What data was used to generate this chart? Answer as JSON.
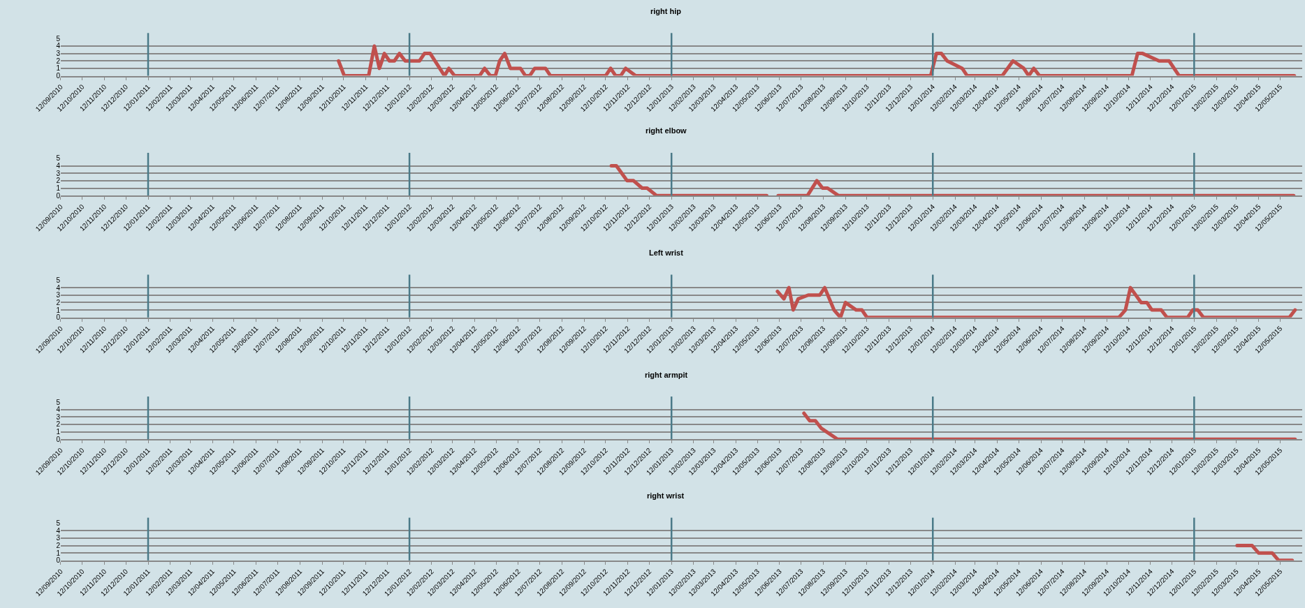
{
  "chart_data": [
    {
      "type": "line",
      "title": "right hip",
      "color": "#c0504d",
      "ylim": [
        0,
        5
      ],
      "yticks": [
        0,
        1,
        2,
        3,
        4,
        5
      ],
      "grid": "y",
      "xlim": [
        "2010-09-12",
        "2015-06-12"
      ],
      "xticks": [
        {
          "value": "2010-09-12",
          "label": "12/09/2010"
        },
        {
          "value": "2010-10-12",
          "label": "12/10/2010"
        },
        {
          "value": "2010-11-12",
          "label": "12/11/2010"
        },
        {
          "value": "2010-12-12",
          "label": "12/12/2010"
        },
        {
          "value": "2011-01-12",
          "label": "12/01/2011"
        },
        {
          "value": "2011-02-12",
          "label": "12/02/2011"
        },
        {
          "value": "2011-03-12",
          "label": "12/03/2011"
        },
        {
          "value": "2011-04-12",
          "label": "12/04/2011"
        },
        {
          "value": "2011-05-12",
          "label": "12/05/2011"
        },
        {
          "value": "2011-06-12",
          "label": "12/06/2011"
        },
        {
          "value": "2011-07-12",
          "label": "12/07/2011"
        },
        {
          "value": "2011-08-12",
          "label": "12/08/2011"
        },
        {
          "value": "2011-09-12",
          "label": "12/09/2011"
        },
        {
          "value": "2011-10-12",
          "label": "12/10/2011"
        },
        {
          "value": "2011-11-12",
          "label": "12/11/2011"
        },
        {
          "value": "2011-12-12",
          "label": "12/12/2011"
        },
        {
          "value": "2012-01-12",
          "label": "12/01/2012"
        },
        {
          "value": "2012-02-12",
          "label": "12/02/2012"
        },
        {
          "value": "2012-03-12",
          "label": "12/03/2012"
        },
        {
          "value": "2012-04-12",
          "label": "12/04/2012"
        },
        {
          "value": "2012-05-12",
          "label": "12/05/2012"
        },
        {
          "value": "2012-06-12",
          "label": "12/06/2012"
        },
        {
          "value": "2012-07-12",
          "label": "12/07/2012"
        },
        {
          "value": "2012-08-12",
          "label": "12/08/2012"
        },
        {
          "value": "2012-09-12",
          "label": "12/09/2012"
        },
        {
          "value": "2012-10-12",
          "label": "12/10/2012"
        },
        {
          "value": "2012-11-12",
          "label": "12/11/2012"
        },
        {
          "value": "2012-12-12",
          "label": "12/12/2012"
        },
        {
          "value": "2013-01-12",
          "label": "12/01/2013"
        },
        {
          "value": "2013-02-12",
          "label": "12/02/2013"
        },
        {
          "value": "2013-03-12",
          "label": "12/03/2013"
        },
        {
          "value": "2013-04-12",
          "label": "12/04/2013"
        },
        {
          "value": "2013-05-12",
          "label": "12/05/2013"
        },
        {
          "value": "2013-06-12",
          "label": "12/06/2013"
        },
        {
          "value": "2013-07-12",
          "label": "12/07/2013"
        },
        {
          "value": "2013-08-12",
          "label": "12/08/2013"
        },
        {
          "value": "2013-09-12",
          "label": "12/09/2013"
        },
        {
          "value": "2013-10-12",
          "label": "12/10/2013"
        },
        {
          "value": "2013-11-12",
          "label": "12/11/2013"
        },
        {
          "value": "2013-12-12",
          "label": "12/12/2013"
        },
        {
          "value": "2014-01-12",
          "label": "12/01/2014"
        },
        {
          "value": "2014-02-12",
          "label": "12/02/2014"
        },
        {
          "value": "2014-03-12",
          "label": "12/03/2014"
        },
        {
          "value": "2014-04-12",
          "label": "12/04/2014"
        },
        {
          "value": "2014-05-12",
          "label": "12/05/2014"
        },
        {
          "value": "2014-06-12",
          "label": "12/06/2014"
        },
        {
          "value": "2014-07-12",
          "label": "12/07/2014"
        },
        {
          "value": "2014-08-12",
          "label": "12/08/2014"
        },
        {
          "value": "2014-09-12",
          "label": "12/09/2014"
        },
        {
          "value": "2014-10-12",
          "label": "12/10/2014"
        },
        {
          "value": "2014-11-12",
          "label": "12/11/2014"
        },
        {
          "value": "2014-12-12",
          "label": "12/12/2014"
        },
        {
          "value": "2015-01-12",
          "label": "12/01/2015"
        },
        {
          "value": "2015-02-12",
          "label": "12/02/2015"
        },
        {
          "value": "2015-03-12",
          "label": "12/03/2015"
        },
        {
          "value": "2015-04-12",
          "label": "12/04/2015"
        },
        {
          "value": "2015-05-12",
          "label": "12/05/2015"
        }
      ],
      "x": [
        "2011-10-05",
        "2011-10-13",
        "2011-11-16",
        "2011-11-24",
        "2011-12-01",
        "2011-12-08",
        "2011-12-15",
        "2011-12-22",
        "2011-12-29",
        "2012-01-06",
        "2012-01-26",
        "2012-02-02",
        "2012-02-10",
        "2012-03-01",
        "2012-03-07",
        "2012-03-15",
        "2012-04-19",
        "2012-04-26",
        "2012-05-04",
        "2012-05-11",
        "2012-05-17",
        "2012-05-24",
        "2012-06-01",
        "2012-06-15",
        "2012-06-22",
        "2012-06-28",
        "2012-07-05",
        "2012-07-20",
        "2012-07-27",
        "2012-10-12",
        "2012-10-19",
        "2012-10-26",
        "2012-11-02",
        "2012-11-09",
        "2012-11-23",
        "2014-01-09",
        "2014-01-17",
        "2014-01-24",
        "2014-02-01",
        "2014-02-22",
        "2014-03-01",
        "2014-04-19",
        "2014-05-04",
        "2014-05-19",
        "2014-05-26",
        "2014-06-02",
        "2014-06-10",
        "2014-10-17",
        "2014-10-25",
        "2014-11-01",
        "2014-11-24",
        "2014-12-08",
        "2014-12-22",
        "2015-06-01"
      ],
      "values": [
        2,
        0,
        0,
        4,
        1,
        3,
        2,
        2,
        3,
        2,
        2,
        3,
        3,
        0,
        1,
        0,
        0,
        1,
        0,
        0,
        2,
        3,
        1,
        1,
        0,
        0,
        1,
        1,
        0,
        0,
        1,
        0,
        0,
        1,
        0,
        0,
        3,
        3,
        2,
        1,
        0,
        0,
        2,
        1,
        0,
        1,
        0,
        0,
        3,
        3,
        2,
        2,
        0,
        0
      ],
      "ref_lines": [
        {
          "axis": "x",
          "value": "2011-01-12",
          "color": "#4a7a88"
        },
        {
          "axis": "x",
          "value": "2012-01-12",
          "color": "#4a7a88"
        },
        {
          "axis": "x",
          "value": "2013-01-12",
          "color": "#4a7a88"
        },
        {
          "axis": "x",
          "value": "2014-01-12",
          "color": "#4a7a88"
        },
        {
          "axis": "x",
          "value": "2015-01-12",
          "color": "#4a7a88"
        }
      ]
    },
    {
      "type": "line",
      "title": "right elbow",
      "color": "#c0504d",
      "ylim": [
        0,
        5
      ],
      "yticks": [
        0,
        1,
        2,
        3,
        4,
        5
      ],
      "grid": "y",
      "xlim": [
        "2010-09-12",
        "2015-06-12"
      ],
      "xticks": [
        {
          "value": "2010-09-12",
          "label": "12/09/2010"
        },
        {
          "value": "2010-10-12",
          "label": "12/10/2010"
        },
        {
          "value": "2010-11-12",
          "label": "12/11/2010"
        },
        {
          "value": "2010-12-12",
          "label": "12/12/2010"
        },
        {
          "value": "2011-01-12",
          "label": "12/01/2011"
        },
        {
          "value": "2011-02-12",
          "label": "12/02/2011"
        },
        {
          "value": "2011-03-12",
          "label": "12/03/2011"
        },
        {
          "value": "2011-04-12",
          "label": "12/04/2011"
        },
        {
          "value": "2011-05-12",
          "label": "12/05/2011"
        },
        {
          "value": "2011-06-12",
          "label": "12/06/2011"
        },
        {
          "value": "2011-07-12",
          "label": "12/07/2011"
        },
        {
          "value": "2011-08-12",
          "label": "12/08/2011"
        },
        {
          "value": "2011-09-12",
          "label": "12/09/2011"
        },
        {
          "value": "2011-10-12",
          "label": "12/10/2011"
        },
        {
          "value": "2011-11-12",
          "label": "12/11/2011"
        },
        {
          "value": "2011-12-12",
          "label": "12/12/2011"
        },
        {
          "value": "2012-01-12",
          "label": "12/01/2012"
        },
        {
          "value": "2012-02-12",
          "label": "12/02/2012"
        },
        {
          "value": "2012-03-12",
          "label": "12/03/2012"
        },
        {
          "value": "2012-04-12",
          "label": "12/04/2012"
        },
        {
          "value": "2012-05-12",
          "label": "12/05/2012"
        },
        {
          "value": "2012-06-12",
          "label": "12/06/2012"
        },
        {
          "value": "2012-07-12",
          "label": "12/07/2012"
        },
        {
          "value": "2012-08-12",
          "label": "12/08/2012"
        },
        {
          "value": "2012-09-12",
          "label": "12/09/2012"
        },
        {
          "value": "2012-10-12",
          "label": "12/10/2012"
        },
        {
          "value": "2012-11-12",
          "label": "12/11/2012"
        },
        {
          "value": "2012-12-12",
          "label": "12/12/2012"
        },
        {
          "value": "2013-01-12",
          "label": "12/01/2013"
        },
        {
          "value": "2013-02-12",
          "label": "12/02/2013"
        },
        {
          "value": "2013-03-12",
          "label": "12/03/2013"
        },
        {
          "value": "2013-04-12",
          "label": "12/04/2013"
        },
        {
          "value": "2013-05-12",
          "label": "12/05/2013"
        },
        {
          "value": "2013-06-12",
          "label": "12/06/2013"
        },
        {
          "value": "2013-07-12",
          "label": "12/07/2013"
        },
        {
          "value": "2013-08-12",
          "label": "12/08/2013"
        },
        {
          "value": "2013-09-12",
          "label": "12/09/2013"
        },
        {
          "value": "2013-10-12",
          "label": "12/10/2013"
        },
        {
          "value": "2013-11-12",
          "label": "12/11/2013"
        },
        {
          "value": "2013-12-12",
          "label": "12/12/2013"
        },
        {
          "value": "2014-01-12",
          "label": "12/01/2014"
        },
        {
          "value": "2014-02-12",
          "label": "12/02/2014"
        },
        {
          "value": "2014-03-12",
          "label": "12/03/2014"
        },
        {
          "value": "2014-04-12",
          "label": "12/04/2014"
        },
        {
          "value": "2014-05-12",
          "label": "12/05/2014"
        },
        {
          "value": "2014-06-12",
          "label": "12/06/2014"
        },
        {
          "value": "2014-07-12",
          "label": "12/07/2014"
        },
        {
          "value": "2014-08-12",
          "label": "12/08/2014"
        },
        {
          "value": "2014-09-12",
          "label": "12/09/2014"
        },
        {
          "value": "2014-10-12",
          "label": "12/10/2014"
        },
        {
          "value": "2014-11-12",
          "label": "12/11/2014"
        },
        {
          "value": "2014-12-12",
          "label": "12/12/2014"
        },
        {
          "value": "2015-01-12",
          "label": "12/01/2015"
        },
        {
          "value": "2015-02-12",
          "label": "12/02/2015"
        },
        {
          "value": "2015-03-12",
          "label": "12/03/2015"
        },
        {
          "value": "2015-04-12",
          "label": "12/04/2015"
        },
        {
          "value": "2015-05-12",
          "label": "12/05/2015"
        }
      ],
      "x": [
        "2012-10-20",
        "2012-10-27",
        "2012-11-11",
        "2012-11-20",
        "2012-12-02",
        "2012-12-09",
        "2012-12-22",
        "2013-05-25",
        "2013-06-01",
        "2013-06-10",
        "2013-07-21",
        "2013-08-03",
        "2013-08-11",
        "2013-08-18",
        "2013-09-02",
        "2015-05-31"
      ],
      "values": [
        4,
        4,
        2,
        2,
        1,
        1,
        0,
        0,
        null,
        0,
        0,
        2,
        1,
        1,
        0,
        0
      ],
      "ref_lines": [
        {
          "axis": "x",
          "value": "2011-01-12",
          "color": "#4a7a88"
        },
        {
          "axis": "x",
          "value": "2012-01-12",
          "color": "#4a7a88"
        },
        {
          "axis": "x",
          "value": "2013-01-12",
          "color": "#4a7a88"
        },
        {
          "axis": "x",
          "value": "2014-01-12",
          "color": "#4a7a88"
        },
        {
          "axis": "x",
          "value": "2015-01-12",
          "color": "#4a7a88"
        }
      ]
    },
    {
      "type": "line",
      "title": "Left wrist",
      "color": "#c0504d",
      "ylim": [
        0,
        5
      ],
      "yticks": [
        0,
        1,
        2,
        3,
        4,
        5
      ],
      "grid": "y",
      "xlim": [
        "2010-09-12",
        "2015-06-12"
      ],
      "xticks": [
        {
          "value": "2010-09-12",
          "label": "12/09/2010"
        },
        {
          "value": "2010-10-12",
          "label": "12/10/2010"
        },
        {
          "value": "2010-11-12",
          "label": "12/11/2010"
        },
        {
          "value": "2010-12-12",
          "label": "12/12/2010"
        },
        {
          "value": "2011-01-12",
          "label": "12/01/2011"
        },
        {
          "value": "2011-02-12",
          "label": "12/02/2011"
        },
        {
          "value": "2011-03-12",
          "label": "12/03/2011"
        },
        {
          "value": "2011-04-12",
          "label": "12/04/2011"
        },
        {
          "value": "2011-05-12",
          "label": "12/05/2011"
        },
        {
          "value": "2011-06-12",
          "label": "12/06/2011"
        },
        {
          "value": "2011-07-12",
          "label": "12/07/2011"
        },
        {
          "value": "2011-08-12",
          "label": "12/08/2011"
        },
        {
          "value": "2011-09-12",
          "label": "12/09/2011"
        },
        {
          "value": "2011-10-12",
          "label": "12/10/2011"
        },
        {
          "value": "2011-11-12",
          "label": "12/11/2011"
        },
        {
          "value": "2011-12-12",
          "label": "12/12/2011"
        },
        {
          "value": "2012-01-12",
          "label": "12/01/2012"
        },
        {
          "value": "2012-02-12",
          "label": "12/02/2012"
        },
        {
          "value": "2012-03-12",
          "label": "12/03/2012"
        },
        {
          "value": "2012-04-12",
          "label": "12/04/2012"
        },
        {
          "value": "2012-05-12",
          "label": "12/05/2012"
        },
        {
          "value": "2012-06-12",
          "label": "12/06/2012"
        },
        {
          "value": "2012-07-12",
          "label": "12/07/2012"
        },
        {
          "value": "2012-08-12",
          "label": "12/08/2012"
        },
        {
          "value": "2012-09-12",
          "label": "12/09/2012"
        },
        {
          "value": "2012-10-12",
          "label": "12/10/2012"
        },
        {
          "value": "2012-11-12",
          "label": "12/11/2012"
        },
        {
          "value": "2012-12-12",
          "label": "12/12/2012"
        },
        {
          "value": "2013-01-12",
          "label": "12/01/2013"
        },
        {
          "value": "2013-02-12",
          "label": "12/02/2013"
        },
        {
          "value": "2013-03-12",
          "label": "12/03/2013"
        },
        {
          "value": "2013-04-12",
          "label": "12/04/2013"
        },
        {
          "value": "2013-05-12",
          "label": "12/05/2013"
        },
        {
          "value": "2013-06-12",
          "label": "12/06/2013"
        },
        {
          "value": "2013-07-12",
          "label": "12/07/2013"
        },
        {
          "value": "2013-08-12",
          "label": "12/08/2013"
        },
        {
          "value": "2013-09-12",
          "label": "12/09/2013"
        },
        {
          "value": "2013-10-12",
          "label": "12/10/2013"
        },
        {
          "value": "2013-11-12",
          "label": "12/11/2013"
        },
        {
          "value": "2013-12-12",
          "label": "12/12/2013"
        },
        {
          "value": "2014-01-12",
          "label": "12/01/2014"
        },
        {
          "value": "2014-02-12",
          "label": "12/02/2014"
        },
        {
          "value": "2014-03-12",
          "label": "12/03/2014"
        },
        {
          "value": "2014-04-12",
          "label": "12/04/2014"
        },
        {
          "value": "2014-05-12",
          "label": "12/05/2014"
        },
        {
          "value": "2014-06-12",
          "label": "12/06/2014"
        },
        {
          "value": "2014-07-12",
          "label": "12/07/2014"
        },
        {
          "value": "2014-08-12",
          "label": "12/08/2014"
        },
        {
          "value": "2014-09-12",
          "label": "12/09/2014"
        },
        {
          "value": "2014-10-12",
          "label": "12/10/2014"
        },
        {
          "value": "2014-11-12",
          "label": "12/11/2014"
        },
        {
          "value": "2014-12-12",
          "label": "12/12/2014"
        },
        {
          "value": "2015-01-12",
          "label": "12/01/2015"
        },
        {
          "value": "2015-02-12",
          "label": "12/02/2015"
        },
        {
          "value": "2015-03-12",
          "label": "12/03/2015"
        },
        {
          "value": "2015-04-12",
          "label": "12/04/2015"
        },
        {
          "value": "2015-05-12",
          "label": "12/05/2015"
        }
      ],
      "x": [
        "2013-06-09",
        "2013-06-18",
        "2013-06-25",
        "2013-07-01",
        "2013-07-08",
        "2013-07-22",
        "2013-08-07",
        "2013-08-14",
        "2013-08-27",
        "2013-09-05",
        "2013-09-12",
        "2013-09-27",
        "2013-10-05",
        "2013-10-12",
        "2014-09-29",
        "2014-10-08",
        "2014-10-15",
        "2014-10-30",
        "2014-11-07",
        "2014-11-14",
        "2014-11-27",
        "2014-12-05",
        "2015-01-03",
        "2015-01-10",
        "2015-01-17",
        "2015-01-25",
        "2015-05-25",
        "2015-06-02"
      ],
      "values": [
        3.5,
        2.5,
        4,
        1,
        2.5,
        3,
        3,
        4,
        1,
        0,
        2,
        1,
        1,
        0,
        0,
        1,
        4,
        2,
        2,
        1,
        1,
        0,
        0,
        1,
        1,
        0,
        0,
        1
      ],
      "ref_lines": [
        {
          "axis": "x",
          "value": "2011-01-12",
          "color": "#4a7a88"
        },
        {
          "axis": "x",
          "value": "2012-01-12",
          "color": "#4a7a88"
        },
        {
          "axis": "x",
          "value": "2013-01-12",
          "color": "#4a7a88"
        },
        {
          "axis": "x",
          "value": "2014-01-12",
          "color": "#4a7a88"
        },
        {
          "axis": "x",
          "value": "2015-01-12",
          "color": "#4a7a88"
        }
      ]
    },
    {
      "type": "line",
      "title": "right armpit",
      "color": "#c0504d",
      "ylim": [
        0,
        5
      ],
      "yticks": [
        0,
        1,
        2,
        3,
        4,
        5
      ],
      "grid": "y",
      "xlim": [
        "2010-09-12",
        "2015-06-12"
      ],
      "xticks": [
        {
          "value": "2010-09-12",
          "label": "12/09/2010"
        },
        {
          "value": "2010-10-12",
          "label": "12/10/2010"
        },
        {
          "value": "2010-11-12",
          "label": "12/11/2010"
        },
        {
          "value": "2010-12-12",
          "label": "12/12/2010"
        },
        {
          "value": "2011-01-12",
          "label": "12/01/2011"
        },
        {
          "value": "2011-02-12",
          "label": "12/02/2011"
        },
        {
          "value": "2011-03-12",
          "label": "12/03/2011"
        },
        {
          "value": "2011-04-12",
          "label": "12/04/2011"
        },
        {
          "value": "2011-05-12",
          "label": "12/05/2011"
        },
        {
          "value": "2011-06-12",
          "label": "12/06/2011"
        },
        {
          "value": "2011-07-12",
          "label": "12/07/2011"
        },
        {
          "value": "2011-08-12",
          "label": "12/08/2011"
        },
        {
          "value": "2011-09-12",
          "label": "12/09/2011"
        },
        {
          "value": "2011-10-12",
          "label": "12/10/2011"
        },
        {
          "value": "2011-11-12",
          "label": "12/11/2011"
        },
        {
          "value": "2011-12-12",
          "label": "12/12/2011"
        },
        {
          "value": "2012-01-12",
          "label": "12/01/2012"
        },
        {
          "value": "2012-02-12",
          "label": "12/02/2012"
        },
        {
          "value": "2012-03-12",
          "label": "12/03/2012"
        },
        {
          "value": "2012-04-12",
          "label": "12/04/2012"
        },
        {
          "value": "2012-05-12",
          "label": "12/05/2012"
        },
        {
          "value": "2012-06-12",
          "label": "12/06/2012"
        },
        {
          "value": "2012-07-12",
          "label": "12/07/2012"
        },
        {
          "value": "2012-08-12",
          "label": "12/08/2012"
        },
        {
          "value": "2012-09-12",
          "label": "12/09/2012"
        },
        {
          "value": "2012-10-12",
          "label": "12/10/2012"
        },
        {
          "value": "2012-11-12",
          "label": "12/11/2012"
        },
        {
          "value": "2012-12-12",
          "label": "12/12/2012"
        },
        {
          "value": "2013-01-12",
          "label": "12/01/2013"
        },
        {
          "value": "2013-02-12",
          "label": "12/02/2013"
        },
        {
          "value": "2013-03-12",
          "label": "12/03/2013"
        },
        {
          "value": "2013-04-12",
          "label": "12/04/2013"
        },
        {
          "value": "2013-05-12",
          "label": "12/05/2013"
        },
        {
          "value": "2013-06-12",
          "label": "12/06/2013"
        },
        {
          "value": "2013-07-12",
          "label": "12/07/2013"
        },
        {
          "value": "2013-08-12",
          "label": "12/08/2013"
        },
        {
          "value": "2013-09-12",
          "label": "12/09/2013"
        },
        {
          "value": "2013-10-12",
          "label": "12/10/2013"
        },
        {
          "value": "2013-11-12",
          "label": "12/11/2013"
        },
        {
          "value": "2013-12-12",
          "label": "12/12/2013"
        },
        {
          "value": "2014-01-12",
          "label": "12/01/2014"
        },
        {
          "value": "2014-02-12",
          "label": "12/02/2014"
        },
        {
          "value": "2014-03-12",
          "label": "12/03/2014"
        },
        {
          "value": "2014-04-12",
          "label": "12/04/2014"
        },
        {
          "value": "2014-05-12",
          "label": "12/05/2014"
        },
        {
          "value": "2014-06-12",
          "label": "12/06/2014"
        },
        {
          "value": "2014-07-12",
          "label": "12/07/2014"
        },
        {
          "value": "2014-08-12",
          "label": "12/08/2014"
        },
        {
          "value": "2014-09-12",
          "label": "12/09/2014"
        },
        {
          "value": "2014-10-12",
          "label": "12/10/2014"
        },
        {
          "value": "2014-11-12",
          "label": "12/11/2014"
        },
        {
          "value": "2014-12-12",
          "label": "12/12/2014"
        },
        {
          "value": "2015-01-12",
          "label": "12/01/2015"
        },
        {
          "value": "2015-02-12",
          "label": "12/02/2015"
        },
        {
          "value": "2015-03-12",
          "label": "12/03/2015"
        },
        {
          "value": "2015-04-12",
          "label": "12/04/2015"
        },
        {
          "value": "2015-05-12",
          "label": "12/05/2015"
        }
      ],
      "x": [
        "2013-07-16",
        "2013-07-24",
        "2013-08-01",
        "2013-08-09",
        "2013-09-01",
        "2015-06-02"
      ],
      "values": [
        3.5,
        2.5,
        2.5,
        1.5,
        0,
        0
      ],
      "ref_lines": [
        {
          "axis": "x",
          "value": "2011-01-12",
          "color": "#4a7a88"
        },
        {
          "axis": "x",
          "value": "2012-01-12",
          "color": "#4a7a88"
        },
        {
          "axis": "x",
          "value": "2013-01-12",
          "color": "#4a7a88"
        },
        {
          "axis": "x",
          "value": "2014-01-12",
          "color": "#4a7a88"
        },
        {
          "axis": "x",
          "value": "2015-01-12",
          "color": "#4a7a88"
        }
      ]
    },
    {
      "type": "line",
      "title": "right wrist",
      "color": "#c0504d",
      "ylim": [
        0,
        5
      ],
      "yticks": [
        0,
        1,
        2,
        3,
        4,
        5
      ],
      "grid": "y",
      "xlim": [
        "2010-09-12",
        "2015-06-12"
      ],
      "xticks": [
        {
          "value": "2010-09-12",
          "label": "12/09/2010"
        },
        {
          "value": "2010-10-12",
          "label": "12/10/2010"
        },
        {
          "value": "2010-11-12",
          "label": "12/11/2010"
        },
        {
          "value": "2010-12-12",
          "label": "12/12/2010"
        },
        {
          "value": "2011-01-12",
          "label": "12/01/2011"
        },
        {
          "value": "2011-02-12",
          "label": "12/02/2011"
        },
        {
          "value": "2011-03-12",
          "label": "12/03/2011"
        },
        {
          "value": "2011-04-12",
          "label": "12/04/2011"
        },
        {
          "value": "2011-05-12",
          "label": "12/05/2011"
        },
        {
          "value": "2011-06-12",
          "label": "12/06/2011"
        },
        {
          "value": "2011-07-12",
          "label": "12/07/2011"
        },
        {
          "value": "2011-08-12",
          "label": "12/08/2011"
        },
        {
          "value": "2011-09-12",
          "label": "12/09/2011"
        },
        {
          "value": "2011-10-12",
          "label": "12/10/2011"
        },
        {
          "value": "2011-11-12",
          "label": "12/11/2011"
        },
        {
          "value": "2011-12-12",
          "label": "12/12/2011"
        },
        {
          "value": "2012-01-12",
          "label": "12/01/2012"
        },
        {
          "value": "2012-02-12",
          "label": "12/02/2012"
        },
        {
          "value": "2012-03-12",
          "label": "12/03/2012"
        },
        {
          "value": "2012-04-12",
          "label": "12/04/2012"
        },
        {
          "value": "2012-05-12",
          "label": "12/05/2012"
        },
        {
          "value": "2012-06-12",
          "label": "12/06/2012"
        },
        {
          "value": "2012-07-12",
          "label": "12/07/2012"
        },
        {
          "value": "2012-08-12",
          "label": "12/08/2012"
        },
        {
          "value": "2012-09-12",
          "label": "12/09/2012"
        },
        {
          "value": "2012-10-12",
          "label": "12/10/2012"
        },
        {
          "value": "2012-11-12",
          "label": "12/11/2012"
        },
        {
          "value": "2012-12-12",
          "label": "12/12/2012"
        },
        {
          "value": "2013-01-12",
          "label": "12/01/2013"
        },
        {
          "value": "2013-02-12",
          "label": "12/02/2013"
        },
        {
          "value": "2013-03-12",
          "label": "12/03/2013"
        },
        {
          "value": "2013-04-12",
          "label": "12/04/2013"
        },
        {
          "value": "2013-05-12",
          "label": "12/05/2013"
        },
        {
          "value": "2013-06-12",
          "label": "12/06/2013"
        },
        {
          "value": "2013-07-12",
          "label": "12/07/2013"
        },
        {
          "value": "2013-08-12",
          "label": "12/08/2013"
        },
        {
          "value": "2013-09-12",
          "label": "12/09/2013"
        },
        {
          "value": "2013-10-12",
          "label": "12/10/2013"
        },
        {
          "value": "2013-11-12",
          "label": "12/11/2013"
        },
        {
          "value": "2013-12-12",
          "label": "12/12/2013"
        },
        {
          "value": "2014-01-12",
          "label": "12/01/2014"
        },
        {
          "value": "2014-02-12",
          "label": "12/02/2014"
        },
        {
          "value": "2014-03-12",
          "label": "12/03/2014"
        },
        {
          "value": "2014-04-12",
          "label": "12/04/2014"
        },
        {
          "value": "2014-05-12",
          "label": "12/05/2014"
        },
        {
          "value": "2014-06-12",
          "label": "12/06/2014"
        },
        {
          "value": "2014-07-12",
          "label": "12/07/2014"
        },
        {
          "value": "2014-08-12",
          "label": "12/08/2014"
        },
        {
          "value": "2014-09-12",
          "label": "12/09/2014"
        },
        {
          "value": "2014-10-12",
          "label": "12/10/2014"
        },
        {
          "value": "2014-11-12",
          "label": "12/11/2014"
        },
        {
          "value": "2014-12-12",
          "label": "12/12/2014"
        },
        {
          "value": "2015-01-12",
          "label": "12/01/2015"
        },
        {
          "value": "2015-02-12",
          "label": "12/02/2015"
        },
        {
          "value": "2015-03-12",
          "label": "12/03/2015"
        },
        {
          "value": "2015-04-12",
          "label": "12/04/2015"
        },
        {
          "value": "2015-05-12",
          "label": "12/05/2015"
        }
      ],
      "x": [
        "2015-03-13",
        "2015-04-03",
        "2015-04-12",
        "2015-05-01",
        "2015-05-10",
        "2015-05-29"
      ],
      "values": [
        2,
        2,
        1,
        1,
        0,
        0
      ],
      "ref_lines": [
        {
          "axis": "x",
          "value": "2011-01-12",
          "color": "#4a7a88"
        },
        {
          "axis": "x",
          "value": "2012-01-12",
          "color": "#4a7a88"
        },
        {
          "axis": "x",
          "value": "2013-01-12",
          "color": "#4a7a88"
        },
        {
          "axis": "x",
          "value": "2014-01-12",
          "color": "#4a7a88"
        },
        {
          "axis": "x",
          "value": "2015-01-12",
          "color": "#4a7a88"
        }
      ]
    }
  ]
}
